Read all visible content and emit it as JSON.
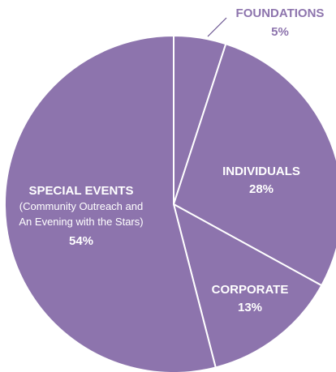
{
  "chart_data": {
    "type": "pie",
    "title": "",
    "categories": [
      "FOUNDATIONS",
      "INDIVIDUALS",
      "CORPORATE",
      "SPECIAL EVENTS"
    ],
    "values": [
      5,
      28,
      13,
      54
    ],
    "value_labels": [
      "5%",
      "28%",
      "13%",
      "54%"
    ],
    "subtitles": [
      "",
      "",
      "",
      "(Community Outreach and|An Evening with the Stars)"
    ],
    "start": "12 o'clock",
    "direction": "clockwise",
    "legend": "none",
    "colors": {
      "slice": "#8d74ad",
      "separator": "#ffffff",
      "label_inside": "#ffffff",
      "label_outside": "#8d74ad",
      "leader": "#6a5590"
    }
  }
}
